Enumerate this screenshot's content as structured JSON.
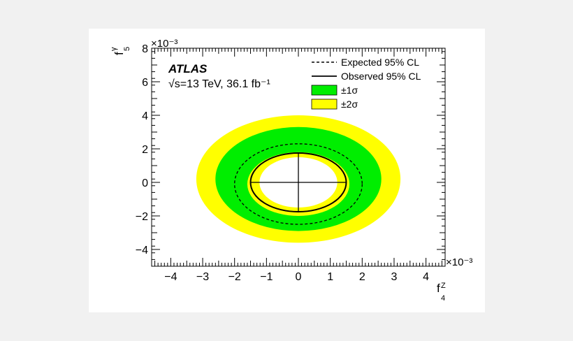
{
  "chart_data": {
    "type": "contour",
    "experiment": "ATLAS",
    "energy_label": "√s=13 TeV, 36.1 fb⁻¹",
    "xlabel": "f4^Z",
    "ylabel": "f5^γ",
    "x_multiplier": "×10⁻³",
    "y_multiplier": "×10⁻³",
    "xlim": [
      -4.6,
      4.6
    ],
    "ylim": [
      -5.0,
      8.0
    ],
    "x_ticks": [
      -4,
      -3,
      -2,
      -1,
      0,
      1,
      2,
      3,
      4
    ],
    "y_ticks": [
      -4,
      -2,
      0,
      2,
      4,
      6,
      8
    ],
    "x_tick_labels": [
      "−4",
      "−3",
      "−2",
      "−1",
      "0",
      "1",
      "2",
      "3",
      "4"
    ],
    "y_tick_labels": [
      "−4",
      "−2",
      "0",
      "2",
      "4",
      "6",
      "8"
    ],
    "legend_position": "top-right",
    "legend": [
      {
        "key": "expected",
        "label": "Expected 95% CL",
        "style": "dashed-line"
      },
      {
        "key": "observed",
        "label": "Observed 95% CL",
        "style": "solid-line"
      },
      {
        "key": "sigma1",
        "label": "±1σ",
        "style": "fill",
        "color": "#00ee00"
      },
      {
        "key": "sigma2",
        "label": "±2σ",
        "style": "fill",
        "color": "#ffff00"
      }
    ],
    "contours": {
      "sigma2_outer": {
        "cx": 0.0,
        "cy": 0.2,
        "rx": 3.2,
        "ry": 3.8
      },
      "sigma1_outer": {
        "cx": 0.0,
        "cy": 0.2,
        "rx": 2.6,
        "ry": 3.1
      },
      "expected": {
        "cx": 0.0,
        "cy": -0.1,
        "rx": 2.0,
        "ry": 2.4
      },
      "sigma1_inner": {
        "cx": 0.0,
        "cy": -0.1,
        "rx": 1.6,
        "ry": 1.9
      },
      "observed": {
        "cx": 0.0,
        "cy": 0.0,
        "rx": 1.5,
        "ry": 1.75
      },
      "sigma2_inner": {
        "cx": 0.0,
        "cy": 0.0,
        "rx": 1.22,
        "ry": 1.5
      }
    },
    "observed_cross": {
      "x": [
        -1.5,
        1.5
      ],
      "y": [
        -1.75,
        1.75
      ]
    },
    "colors": {
      "sigma1": "#00ee00",
      "sigma2": "#ffff00",
      "line": "#000000"
    }
  }
}
